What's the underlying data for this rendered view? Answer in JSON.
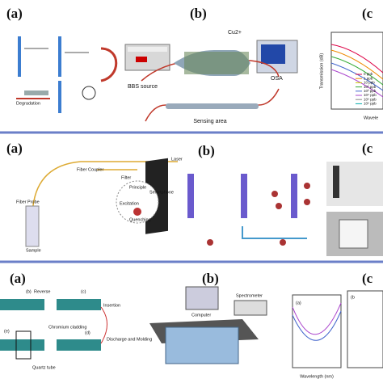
{
  "row1": {
    "labels": [
      "(a)",
      "(b)",
      "(c"
    ],
    "texts": [
      "BBS source",
      "OSA",
      "Sensing area",
      "Cu2+",
      "Transmission (dB)",
      "Wavele",
      "Degradation"
    ],
    "legend": [
      "0 ppb",
      "1 ppb",
      "10 ppb",
      "10² ppb",
      "10³ ppb",
      "10⁴ ppb",
      "10⁵ ppb",
      "10⁶ ppb"
    ]
  },
  "row2": {
    "labels": [
      "(a)",
      "(b)",
      "(c"
    ],
    "texts": [
      "Laser",
      "Fiber Coupler",
      "Filter",
      "Smartphone",
      "Fiber Probe",
      "Sample",
      "Principle",
      "Excitation",
      "Quenching"
    ]
  },
  "row3": {
    "labels": [
      "(a)",
      "(b)",
      "(c"
    ],
    "texts": [
      "(b)",
      "Reverse",
      "(c)",
      "Insertion",
      "Discharge and Molding",
      "(e)",
      "Chromium cladding",
      "(d)",
      "Quartz tube",
      "Computer",
      "Spectrometer",
      "Wavelength (nm)",
      "(a)",
      "(b"
    ]
  }
}
